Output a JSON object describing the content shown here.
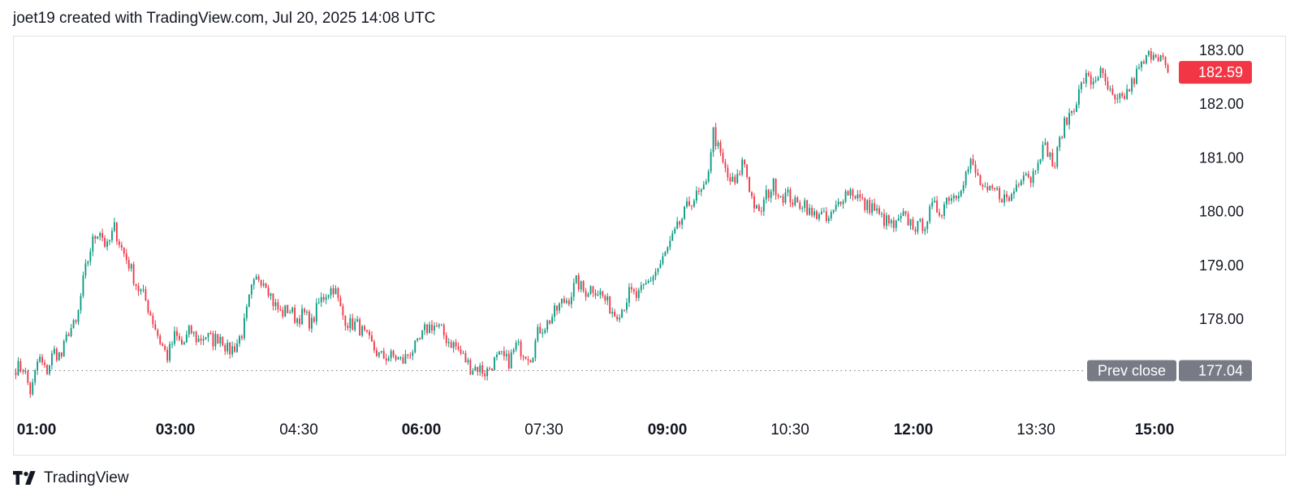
{
  "header": {
    "title": "joet19 created with TradingView.com, Jul 20, 2025 14:08 UTC"
  },
  "footer": {
    "brand": "TradingView",
    "logo_icon": "tradingview-logo-icon"
  },
  "colors": {
    "up": "#089981",
    "down": "#f23645",
    "tag_gray": "#787b86",
    "grid_dot": "#787b86"
  },
  "chart_data": {
    "type": "candlestick",
    "ylim": [
      176.4,
      183.3
    ],
    "y_ticks": [
      "183.00",
      "182.00",
      "181.00",
      "180.00",
      "179.00",
      "178.00"
    ],
    "y_tick_values": [
      183,
      182,
      181,
      180,
      179,
      178
    ],
    "x_ticks": [
      {
        "label": "01:00",
        "bold": true
      },
      {
        "label": "03:00",
        "bold": true
      },
      {
        "label": "04:30",
        "bold": false
      },
      {
        "label": "06:00",
        "bold": true
      },
      {
        "label": "07:30",
        "bold": false
      },
      {
        "label": "09:00",
        "bold": true
      },
      {
        "label": "10:30",
        "bold": false
      },
      {
        "label": "12:00",
        "bold": true
      },
      {
        "label": "13:30",
        "bold": false
      },
      {
        "label": "15:00",
        "bold": true
      }
    ],
    "last_price": {
      "label": "182.59",
      "value": 182.59
    },
    "prev_close": {
      "label": "Prev close",
      "value_label": "177.04",
      "value": 177.04
    },
    "price_path": [
      [
        0,
        177.1
      ],
      [
        1,
        177.1
      ],
      [
        2,
        176.6
      ],
      [
        3,
        177.3
      ],
      [
        4,
        177.0
      ],
      [
        5,
        177.4
      ],
      [
        6,
        177.3
      ],
      [
        7,
        177.8
      ],
      [
        8,
        177.9
      ],
      [
        9,
        178.8
      ],
      [
        10,
        179.4
      ],
      [
        11,
        179.7
      ],
      [
        12,
        179.3
      ],
      [
        13,
        179.7
      ],
      [
        14,
        179.3
      ],
      [
        15,
        179.0
      ],
      [
        16,
        178.6
      ],
      [
        17,
        178.4
      ],
      [
        18,
        178.0
      ],
      [
        19,
        177.6
      ],
      [
        20,
        177.3
      ],
      [
        21,
        177.7
      ],
      [
        22,
        177.5
      ],
      [
        23,
        177.8
      ],
      [
        24,
        177.6
      ],
      [
        25,
        177.7
      ],
      [
        26,
        177.6
      ],
      [
        27,
        177.7
      ],
      [
        28,
        177.4
      ],
      [
        29,
        177.5
      ],
      [
        30,
        177.8
      ],
      [
        31,
        178.5
      ],
      [
        32,
        178.8
      ],
      [
        33,
        178.7
      ],
      [
        34,
        178.3
      ],
      [
        35,
        178.1
      ],
      [
        36,
        178.2
      ],
      [
        37,
        178.0
      ],
      [
        38,
        178.1
      ],
      [
        39,
        177.9
      ],
      [
        40,
        178.3
      ],
      [
        41,
        178.5
      ],
      [
        42,
        178.6
      ],
      [
        43,
        178.1
      ],
      [
        44,
        177.9
      ],
      [
        45,
        177.9
      ],
      [
        46,
        177.7
      ],
      [
        47,
        177.5
      ],
      [
        48,
        177.3
      ],
      [
        49,
        177.3
      ],
      [
        50,
        177.3
      ],
      [
        51,
        177.2
      ],
      [
        52,
        177.4
      ],
      [
        53,
        177.5
      ],
      [
        54,
        177.8
      ],
      [
        55,
        177.9
      ],
      [
        56,
        177.8
      ],
      [
        57,
        177.6
      ],
      [
        58,
        177.5
      ],
      [
        59,
        177.3
      ],
      [
        60,
        177.1
      ],
      [
        61,
        177.1
      ],
      [
        62,
        177.0
      ],
      [
        63,
        177.2
      ],
      [
        64,
        177.3
      ],
      [
        65,
        177.2
      ],
      [
        66,
        177.5
      ],
      [
        67,
        177.4
      ],
      [
        68,
        177.3
      ],
      [
        69,
        177.8
      ],
      [
        70,
        177.9
      ],
      [
        71,
        178.1
      ],
      [
        72,
        178.3
      ],
      [
        73,
        178.4
      ],
      [
        74,
        178.7
      ],
      [
        75,
        178.5
      ],
      [
        76,
        178.6
      ],
      [
        77,
        178.5
      ],
      [
        78,
        178.3
      ],
      [
        79,
        178.1
      ],
      [
        80,
        178.2
      ],
      [
        81,
        178.5
      ],
      [
        82,
        178.4
      ],
      [
        83,
        178.6
      ],
      [
        84,
        178.8
      ],
      [
        85,
        179.0
      ],
      [
        86,
        179.3
      ],
      [
        87,
        179.6
      ],
      [
        88,
        179.9
      ],
      [
        89,
        180.2
      ],
      [
        90,
        180.3
      ],
      [
        91,
        180.4
      ],
      [
        92,
        181.5
      ],
      [
        93,
        181.0
      ],
      [
        94,
        180.6
      ],
      [
        95,
        180.5
      ],
      [
        96,
        181.0
      ],
      [
        97,
        180.3
      ],
      [
        98,
        179.9
      ],
      [
        99,
        180.3
      ],
      [
        100,
        180.5
      ],
      [
        101,
        180.3
      ],
      [
        102,
        180.3
      ],
      [
        103,
        180.1
      ],
      [
        104,
        180.2
      ],
      [
        105,
        179.9
      ],
      [
        106,
        180.0
      ],
      [
        107,
        179.8
      ],
      [
        108,
        180.0
      ],
      [
        109,
        180.3
      ],
      [
        110,
        180.4
      ],
      [
        111,
        180.3
      ],
      [
        112,
        180.1
      ],
      [
        113,
        180.1
      ],
      [
        114,
        179.9
      ],
      [
        115,
        179.8
      ],
      [
        116,
        179.7
      ],
      [
        117,
        179.9
      ],
      [
        118,
        179.8
      ],
      [
        119,
        179.7
      ],
      [
        120,
        179.8
      ],
      [
        121,
        180.1
      ],
      [
        122,
        180.0
      ],
      [
        123,
        180.3
      ],
      [
        124,
        180.3
      ],
      [
        125,
        180.6
      ],
      [
        126,
        180.9
      ],
      [
        127,
        180.6
      ],
      [
        128,
        180.3
      ],
      [
        129,
        180.4
      ],
      [
        130,
        180.3
      ],
      [
        131,
        180.2
      ],
      [
        132,
        180.5
      ],
      [
        133,
        180.8
      ],
      [
        134,
        180.6
      ],
      [
        135,
        181.1
      ],
      [
        136,
        181.2
      ],
      [
        137,
        180.8
      ],
      [
        138,
        181.5
      ],
      [
        139,
        181.8
      ],
      [
        140,
        182.1
      ],
      [
        141,
        182.5
      ],
      [
        142,
        182.4
      ],
      [
        143,
        182.6
      ],
      [
        144,
        182.3
      ],
      [
        145,
        182.0
      ],
      [
        146,
        182.1
      ],
      [
        147,
        182.3
      ],
      [
        148,
        182.6
      ],
      [
        149,
        182.8
      ],
      [
        150,
        183.0
      ],
      [
        151,
        182.9
      ],
      [
        152,
        182.59
      ]
    ]
  }
}
